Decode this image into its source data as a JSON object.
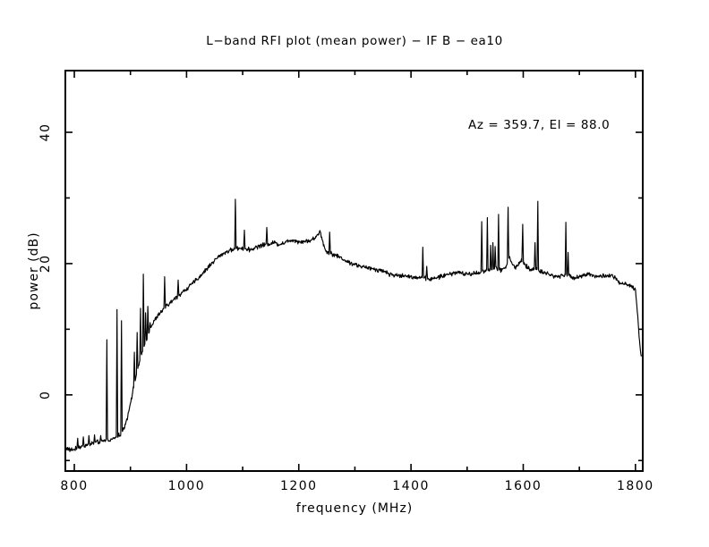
{
  "title": "L−band RFI plot (mean power) − IF B − ea10",
  "annotation": "Az = 359.7, El = 88.0",
  "x_axis": {
    "label": "frequency (MHz)",
    "tick_labels": [
      "800",
      "1000",
      "1200",
      "1400",
      "1600",
      "1800"
    ],
    "major_ticks": [
      800,
      1000,
      1200,
      1400,
      1600,
      1800
    ],
    "minor_ticks": [
      900,
      1100,
      1300,
      1500,
      1700
    ]
  },
  "y_axis": {
    "label": "power (dB)",
    "tick_labels": [
      "0",
      "20",
      "40"
    ],
    "major_ticks": [
      0,
      20,
      40
    ],
    "minor_ticks": [
      -10,
      10,
      30
    ]
  },
  "chart_data": {
    "type": "line",
    "title": "L−band RFI plot (mean power) − IF B − ea10",
    "xlabel": "frequency (MHz)",
    "ylabel": "power (dB)",
    "annotation": "Az = 359.7, El = 88.0",
    "x_range": [
      784,
      1813
    ],
    "y_range": [
      -11.6,
      49.4
    ],
    "line_color": "#000000",
    "noise_db": 0.2,
    "spike_width_mhz": 1.3,
    "baseline_points": [
      [
        784,
        -8.0
      ],
      [
        792,
        -8.4
      ],
      [
        800,
        -8.3
      ],
      [
        812,
        -7.9
      ],
      [
        824,
        -7.6
      ],
      [
        836,
        -7.3
      ],
      [
        848,
        -7.1
      ],
      [
        858,
        -6.9
      ],
      [
        866,
        -6.8
      ],
      [
        874,
        -6.5
      ],
      [
        881,
        -6.1
      ],
      [
        888,
        -5.2
      ],
      [
        894,
        -3.6
      ],
      [
        900,
        -1.2
      ],
      [
        906,
        1.2
      ],
      [
        912,
        3.6
      ],
      [
        918,
        5.6
      ],
      [
        924,
        7.3
      ],
      [
        930,
        8.9
      ],
      [
        937,
        10.4
      ],
      [
        945,
        11.6
      ],
      [
        954,
        12.6
      ],
      [
        963,
        13.4
      ],
      [
        972,
        14.1
      ],
      [
        981,
        14.8
      ],
      [
        991,
        15.5
      ],
      [
        1001,
        16.2
      ],
      [
        1011,
        17.0
      ],
      [
        1021,
        17.8
      ],
      [
        1031,
        18.7
      ],
      [
        1041,
        19.7
      ],
      [
        1051,
        20.6
      ],
      [
        1061,
        21.3
      ],
      [
        1071,
        21.8
      ],
      [
        1081,
        22.1
      ],
      [
        1090,
        22.3
      ],
      [
        1098,
        22.4
      ],
      [
        1106,
        22.2
      ],
      [
        1113,
        22.1
      ],
      [
        1121,
        22.4
      ],
      [
        1130,
        22.7
      ],
      [
        1140,
        22.9
      ],
      [
        1150,
        23.1
      ],
      [
        1158,
        23.2
      ],
      [
        1165,
        22.9
      ],
      [
        1174,
        23.2
      ],
      [
        1183,
        23.5
      ],
      [
        1192,
        23.6
      ],
      [
        1200,
        23.3
      ],
      [
        1210,
        23.4
      ],
      [
        1220,
        23.5
      ],
      [
        1228,
        23.8
      ],
      [
        1234,
        24.4
      ],
      [
        1238,
        25.0
      ],
      [
        1241,
        24.0
      ],
      [
        1245,
        22.6
      ],
      [
        1250,
        21.7
      ],
      [
        1257,
        21.6
      ],
      [
        1264,
        21.3
      ],
      [
        1273,
        21.0
      ],
      [
        1284,
        20.4
      ],
      [
        1295,
        20.0
      ],
      [
        1306,
        19.7
      ],
      [
        1318,
        19.4
      ],
      [
        1331,
        19.2
      ],
      [
        1344,
        19.0
      ],
      [
        1355,
        18.8
      ],
      [
        1363,
        18.3
      ],
      [
        1376,
        18.2
      ],
      [
        1389,
        18.1
      ],
      [
        1401,
        18.0
      ],
      [
        1413,
        17.9
      ],
      [
        1425,
        17.8
      ],
      [
        1437,
        17.6
      ],
      [
        1448,
        17.9
      ],
      [
        1459,
        18.2
      ],
      [
        1470,
        18.4
      ],
      [
        1481,
        18.7
      ],
      [
        1491,
        18.5
      ],
      [
        1502,
        18.4
      ],
      [
        1513,
        18.5
      ],
      [
        1524,
        18.7
      ],
      [
        1535,
        18.9
      ],
      [
        1545,
        19.1
      ],
      [
        1553,
        19.3
      ],
      [
        1560,
        19.0
      ],
      [
        1568,
        19.4
      ],
      [
        1572,
        20.2
      ],
      [
        1575,
        21.0
      ],
      [
        1579,
        20.2
      ],
      [
        1585,
        19.4
      ],
      [
        1592,
        19.9
      ],
      [
        1597,
        20.6
      ],
      [
        1602,
        19.9
      ],
      [
        1609,
        19.3
      ],
      [
        1616,
        19.0
      ],
      [
        1622,
        19.3
      ],
      [
        1628,
        19.0
      ],
      [
        1637,
        18.6
      ],
      [
        1648,
        18.3
      ],
      [
        1658,
        18.0
      ],
      [
        1668,
        18.2
      ],
      [
        1678,
        18.3
      ],
      [
        1688,
        17.9
      ],
      [
        1698,
        18.0
      ],
      [
        1708,
        18.2
      ],
      [
        1716,
        18.5
      ],
      [
        1724,
        18.2
      ],
      [
        1733,
        18.0
      ],
      [
        1742,
        18.1
      ],
      [
        1751,
        18.2
      ],
      [
        1758,
        18.1
      ],
      [
        1763,
        17.9
      ],
      [
        1770,
        17.2
      ],
      [
        1776,
        16.9
      ],
      [
        1784,
        16.8
      ],
      [
        1791,
        16.6
      ],
      [
        1797,
        16.3
      ],
      [
        1800,
        15.8
      ],
      [
        1803,
        13.0
      ],
      [
        1806,
        9.5
      ],
      [
        1809,
        6.5
      ],
      [
        1811,
        5.6
      ]
    ],
    "spikes": [
      [
        806,
        -6.6
      ],
      [
        816,
        -6.4
      ],
      [
        826,
        -6.2
      ],
      [
        836,
        -6.1
      ],
      [
        847,
        -6.2
      ],
      [
        858,
        8.4
      ],
      [
        876,
        13.0
      ],
      [
        884,
        11.3
      ],
      [
        907,
        6.5
      ],
      [
        912,
        9.5
      ],
      [
        918,
        13.2
      ],
      [
        923,
        18.4
      ],
      [
        927,
        12.5
      ],
      [
        931,
        13.5
      ],
      [
        935,
        11.0
      ],
      [
        961,
        18.0
      ],
      [
        985,
        17.5
      ],
      [
        1087,
        29.8
      ],
      [
        1103,
        25.1
      ],
      [
        1143,
        25.5
      ],
      [
        1255,
        24.8
      ],
      [
        1421,
        22.5
      ],
      [
        1428,
        19.6
      ],
      [
        1526,
        26.4
      ],
      [
        1536,
        27.0
      ],
      [
        1542,
        22.8
      ],
      [
        1546,
        23.2
      ],
      [
        1550,
        22.6
      ],
      [
        1556,
        27.5
      ],
      [
        1573,
        28.6
      ],
      [
        1599,
        26.0
      ],
      [
        1621,
        23.2
      ],
      [
        1626,
        29.5
      ],
      [
        1676,
        26.3
      ],
      [
        1680,
        21.7
      ]
    ]
  }
}
